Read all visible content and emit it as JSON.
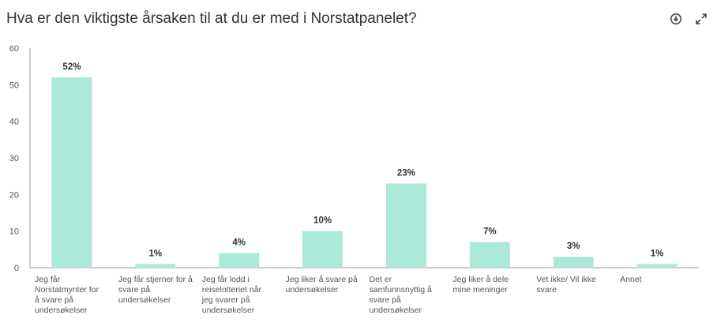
{
  "header": {
    "title": "Hva er den viktigste årsaken til at du er med i Norstatpanelet?"
  },
  "toolbar": {
    "icons": [
      "download-icon",
      "expand-icon"
    ]
  },
  "colors": {
    "bar": "#ace9d9",
    "axis": "#999999",
    "grid": "#f0f0f0",
    "text": "#333333",
    "label": "#555555"
  },
  "chart_data": {
    "type": "bar",
    "categories": [
      "Jeg får Norstatmynter for å svare på undersøkelser",
      "Jeg får stjerner for å svare på undersøkelser",
      "Jeg får lodd i reiselotteriet når jeg svarer på undersøkelser",
      "Jeg liker å svare på undersøkelser",
      "Det er samfunnsnyttig å svare på undersøkelser",
      "Jeg liker å dele mine meninger",
      "Vet ikke/ Vil ikke svare",
      "Annet"
    ],
    "category_lines": [
      [
        "Jeg får",
        "Norstatmynter for",
        "å svare på",
        "undersøkelser"
      ],
      [
        "Jeg får stjerner for å",
        "svare på",
        "undersøkelser"
      ],
      [
        "Jeg får lodd i",
        "reiselotteriet når",
        "jeg svarer på",
        "undersøkelser"
      ],
      [
        "Jeg liker å svare på",
        "undersøkelser"
      ],
      [
        "Det er",
        "samfunnsnyttig å",
        "svare på",
        "undersøkelser"
      ],
      [
        "Jeg liker å dele",
        "mine meninger"
      ],
      [
        "Vet ikke/ Vil ikke",
        "svare"
      ],
      [
        "Annet"
      ]
    ],
    "values": [
      52,
      1,
      4,
      10,
      23,
      7,
      3,
      1
    ],
    "data_labels": [
      "52%",
      "1%",
      "4%",
      "10%",
      "23%",
      "7%",
      "3%",
      "1%"
    ],
    "y_ticks": [
      "0",
      "10",
      "20",
      "30",
      "40",
      "50",
      "60"
    ],
    "ylim": [
      0,
      60
    ],
    "grid": false,
    "legend": "none"
  }
}
